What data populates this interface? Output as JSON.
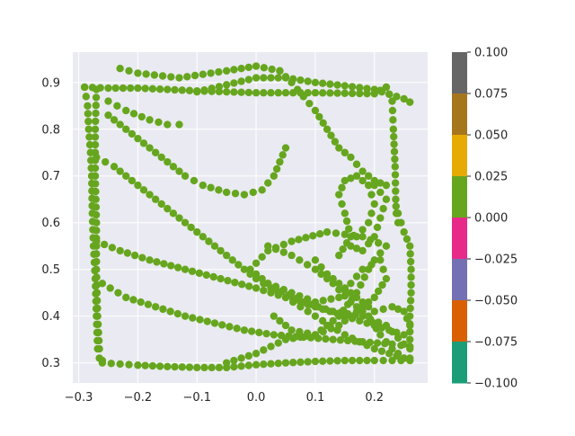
{
  "chart_data": {
    "type": "scatter",
    "title": "",
    "xlabel": "",
    "ylabel": "",
    "xlim": [
      -0.31,
      0.29
    ],
    "ylim": [
      0.257,
      0.965
    ],
    "x_ticks": [
      "−0.3",
      "−0.2",
      "−0.1",
      "0.0",
      "0.1",
      "0.2"
    ],
    "x_tick_values": [
      -0.3,
      -0.2,
      -0.1,
      0.0,
      0.1,
      0.2
    ],
    "y_ticks": [
      "0.3",
      "0.4",
      "0.5",
      "0.6",
      "0.7",
      "0.8",
      "0.9"
    ],
    "y_tick_values": [
      0.3,
      0.4,
      0.5,
      0.6,
      0.7,
      0.8,
      0.9
    ],
    "grid": true,
    "background": "#eaeaf2",
    "point_color": "#66a61e",
    "series": [
      {
        "paths": [
          [
            [
              -0.29,
              0.89
            ],
            [
              -0.25,
              0.888
            ],
            [
              -0.2,
              0.888
            ],
            [
              -0.15,
              0.885
            ],
            [
              -0.1,
              0.882
            ],
            [
              -0.05,
              0.88
            ],
            [
              0.0,
              0.878
            ],
            [
              0.05,
              0.878
            ],
            [
              0.1,
              0.878
            ],
            [
              0.15,
              0.877
            ],
            [
              0.2,
              0.876
            ],
            [
              0.22,
              0.89
            ]
          ],
          [
            [
              -0.27,
              0.885
            ],
            [
              -0.272,
              0.8
            ],
            [
              -0.272,
              0.7
            ],
            [
              -0.27,
              0.6
            ],
            [
              -0.27,
              0.5
            ],
            [
              -0.268,
              0.4
            ],
            [
              -0.265,
              0.33
            ],
            [
              -0.26,
              0.305
            ]
          ],
          [
            [
              -0.29,
              0.89
            ],
            [
              -0.285,
              0.85
            ],
            [
              -0.283,
              0.8
            ],
            [
              -0.28,
              0.75
            ],
            [
              -0.278,
              0.7
            ],
            [
              -0.277,
              0.62
            ],
            [
              -0.275,
              0.55
            ],
            [
              -0.272,
              0.48
            ],
            [
              -0.27,
              0.4
            ],
            [
              -0.268,
              0.33
            ],
            [
              -0.265,
              0.31
            ]
          ],
          [
            [
              -0.26,
              0.3
            ],
            [
              -0.2,
              0.295
            ],
            [
              -0.15,
              0.292
            ],
            [
              -0.1,
              0.29
            ],
            [
              -0.05,
              0.29
            ],
            [
              0.0,
              0.296
            ],
            [
              0.05,
              0.3
            ],
            [
              0.1,
              0.303
            ],
            [
              0.15,
              0.305
            ],
            [
              0.2,
              0.305
            ],
            [
              0.26,
              0.305
            ]
          ],
          [
            [
              0.22,
              0.89
            ],
            [
              0.23,
              0.86
            ],
            [
              0.232,
              0.8
            ],
            [
              0.235,
              0.72
            ],
            [
              0.236,
              0.65
            ],
            [
              0.237,
              0.62
            ],
            [
              0.24,
              0.6
            ]
          ],
          [
            [
              -0.1,
              0.88
            ],
            [
              -0.05,
              0.895
            ],
            [
              0.0,
              0.91
            ],
            [
              0.05,
              0.91
            ],
            [
              0.1,
              0.9
            ],
            [
              0.15,
              0.893
            ],
            [
              0.2,
              0.885
            ],
            [
              0.25,
              0.865
            ],
            [
              0.26,
              0.858
            ]
          ],
          [
            [
              -0.23,
              0.93
            ],
            [
              -0.2,
              0.92
            ],
            [
              -0.13,
              0.91
            ],
            [
              -0.05,
              0.925
            ],
            [
              0.0,
              0.935
            ],
            [
              0.04,
              0.925
            ]
          ],
          [
            [
              0.04,
              0.925
            ],
            [
              0.06,
              0.9
            ],
            [
              0.08,
              0.87
            ],
            [
              0.1,
              0.84
            ],
            [
              0.12,
              0.8
            ],
            [
              0.14,
              0.76
            ],
            [
              0.16,
              0.74
            ],
            [
              0.18,
              0.71
            ],
            [
              0.2,
              0.69
            ],
            [
              0.22,
              0.68
            ]
          ],
          [
            [
              -0.25,
              0.83
            ],
            [
              -0.22,
              0.8
            ],
            [
              -0.2,
              0.78
            ],
            [
              -0.18,
              0.76
            ],
            [
              -0.15,
              0.73
            ],
            [
              -0.12,
              0.7
            ],
            [
              -0.09,
              0.68
            ],
            [
              -0.05,
              0.665
            ],
            [
              -0.02,
              0.66
            ],
            [
              0.01,
              0.67
            ],
            [
              0.03,
              0.7
            ],
            [
              0.05,
              0.76
            ]
          ],
          [
            [
              -0.25,
              0.86
            ],
            [
              -0.22,
              0.84
            ],
            [
              -0.18,
              0.82
            ],
            [
              -0.15,
              0.81
            ],
            [
              -0.13,
              0.81
            ]
          ],
          [
            [
              -0.27,
              0.74
            ],
            [
              -0.24,
              0.72
            ],
            [
              -0.2,
              0.68
            ],
            [
              -0.16,
              0.64
            ],
            [
              -0.12,
              0.6
            ],
            [
              -0.08,
              0.56
            ],
            [
              -0.04,
              0.52
            ],
            [
              0.0,
              0.48
            ],
            [
              0.05,
              0.44
            ],
            [
              0.1,
              0.4
            ],
            [
              0.15,
              0.36
            ],
            [
              0.2,
              0.33
            ],
            [
              0.25,
              0.31
            ]
          ],
          [
            [
              -0.27,
              0.56
            ],
            [
              -0.23,
              0.54
            ],
            [
              -0.18,
              0.52
            ],
            [
              -0.12,
              0.5
            ],
            [
              -0.06,
              0.48
            ],
            [
              0.0,
              0.46
            ],
            [
              0.05,
              0.44
            ],
            [
              0.1,
              0.42
            ],
            [
              0.15,
              0.4
            ],
            [
              0.2,
              0.38
            ],
            [
              0.25,
              0.36
            ]
          ],
          [
            [
              -0.26,
              0.47
            ],
            [
              -0.22,
              0.44
            ],
            [
              -0.17,
              0.42
            ],
            [
              -0.12,
              0.4
            ],
            [
              -0.07,
              0.385
            ],
            [
              -0.02,
              0.37
            ],
            [
              0.03,
              0.36
            ],
            [
              0.08,
              0.355
            ],
            [
              0.13,
              0.35
            ],
            [
              0.18,
              0.345
            ],
            [
              0.23,
              0.34
            ],
            [
              0.26,
              0.335
            ]
          ],
          [
            [
              -0.05,
              0.3
            ],
            [
              0.0,
              0.32
            ],
            [
              0.05,
              0.35
            ],
            [
              0.1,
              0.36
            ],
            [
              0.14,
              0.4
            ],
            [
              0.17,
              0.45
            ],
            [
              0.19,
              0.5
            ],
            [
              0.2,
              0.52
            ],
            [
              0.22,
              0.55
            ],
            [
              0.18,
              0.57
            ],
            [
              0.12,
              0.58
            ],
            [
              0.06,
              0.56
            ],
            [
              0.02,
              0.54
            ],
            [
              -0.01,
              0.5
            ],
            [
              0.03,
              0.46
            ],
            [
              0.08,
              0.43
            ],
            [
              0.13,
              0.41
            ],
            [
              0.18,
              0.4
            ],
            [
              0.22,
              0.38
            ],
            [
              0.25,
              0.34
            ]
          ],
          [
            [
              0.02,
              0.55
            ],
            [
              0.06,
              0.53
            ],
            [
              0.1,
              0.5
            ],
            [
              0.13,
              0.47
            ],
            [
              0.16,
              0.43
            ],
            [
              0.19,
              0.4
            ],
            [
              0.21,
              0.36
            ],
            [
              0.23,
              0.33
            ],
            [
              0.25,
              0.31
            ]
          ],
          [
            [
              0.02,
              0.47
            ],
            [
              0.06,
              0.45
            ],
            [
              0.1,
              0.43
            ],
            [
              0.14,
              0.44
            ],
            [
              0.16,
              0.47
            ],
            [
              0.18,
              0.5
            ],
            [
              0.21,
              0.52
            ],
            [
              0.22,
              0.48
            ],
            [
              0.2,
              0.44
            ],
            [
              0.17,
              0.41
            ],
            [
              0.14,
              0.38
            ],
            [
              0.1,
              0.36
            ],
            [
              0.06,
              0.37
            ],
            [
              0.03,
              0.4
            ]
          ],
          [
            [
              0.14,
              0.53
            ],
            [
              0.16,
              0.57
            ],
            [
              0.15,
              0.62
            ],
            [
              0.14,
              0.66
            ],
            [
              0.15,
              0.69
            ],
            [
              0.17,
              0.7
            ],
            [
              0.19,
              0.68
            ],
            [
              0.2,
              0.64
            ],
            [
              0.19,
              0.6
            ],
            [
              0.17,
              0.57
            ],
            [
              0.16,
              0.55
            ],
            [
              0.18,
              0.54
            ],
            [
              0.2,
              0.57
            ],
            [
              0.21,
              0.61
            ],
            [
              0.22,
              0.65
            ],
            [
              0.2,
              0.68
            ]
          ],
          [
            [
              0.24,
              0.62
            ],
            [
              0.25,
              0.58
            ],
            [
              0.26,
              0.55
            ],
            [
              0.262,
              0.5
            ],
            [
              0.262,
              0.45
            ],
            [
              0.26,
              0.4
            ],
            [
              0.26,
              0.35
            ],
            [
              0.26,
              0.31
            ]
          ],
          [
            [
              0.1,
              0.52
            ],
            [
              0.12,
              0.49
            ],
            [
              0.15,
              0.46
            ],
            [
              0.18,
              0.43
            ],
            [
              0.2,
              0.41
            ],
            [
              0.23,
              0.42
            ],
            [
              0.25,
              0.41
            ],
            [
              0.26,
              0.38
            ]
          ]
        ]
      }
    ],
    "colorbar": {
      "ticks": [
        "0.100",
        "0.075",
        "0.050",
        "0.025",
        "0.000",
        "−0.025",
        "−0.050",
        "−0.075",
        "−0.100"
      ],
      "segments": [
        "#666666",
        "#a6761d",
        "#e6ab02",
        "#66a61e",
        "#e7298a",
        "#7570b3",
        "#d95f02",
        "#1b9e77"
      ]
    }
  }
}
